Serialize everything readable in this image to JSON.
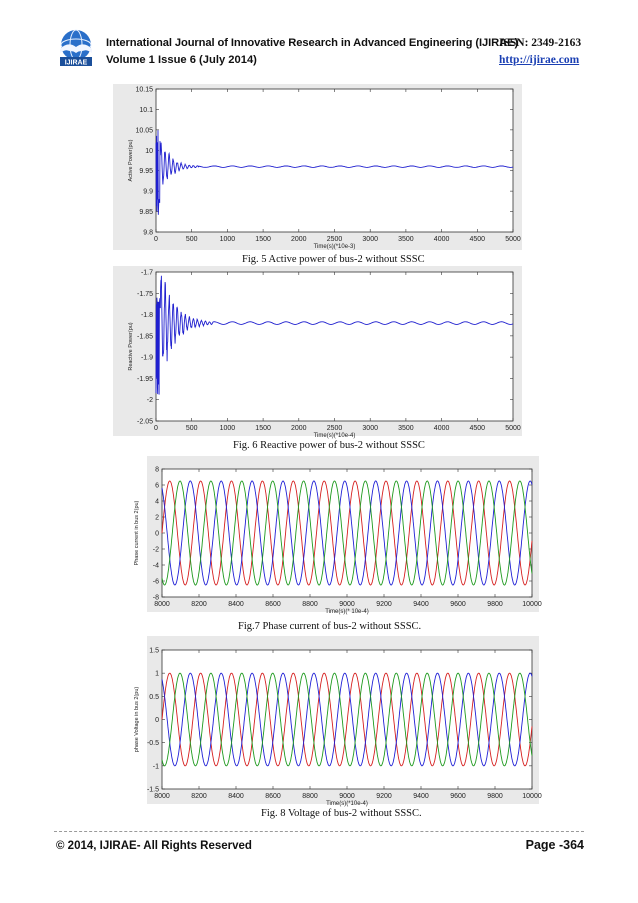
{
  "header": {
    "journal_line": "International Journal of Innovative Research in Advanced Engineering (IJIRAE)",
    "issn": "ISSN: 2349-2163",
    "volume_line": "Volume 1 Issue 6 (July 2014)",
    "url": "http://ijirae.com",
    "logo_text": "IJIRAE"
  },
  "figures": [
    {
      "caption": "Fig. 5 Active power of bus-2 without SSSC"
    },
    {
      "caption": "Fig. 6 Reactive power of bus-2 without SSSC"
    },
    {
      "caption": "Fig.7 Phase current of bus-2 without SSSC."
    },
    {
      "caption": "Fig. 8 Voltage of bus-2 without SSSC."
    }
  ],
  "footer": {
    "copyright": "© 2014, IJIRAE- All Rights Reserved",
    "page": "Page -364"
  },
  "chart_data": [
    {
      "type": "line",
      "xlabel": "Time(s)(*10e-3)",
      "ylabel": "Active Power(pu)",
      "xlim": [
        0,
        5000
      ],
      "ylim": [
        9.8,
        10.15
      ],
      "xticks": [
        0,
        500,
        1000,
        1500,
        2000,
        2500,
        3000,
        3500,
        4000,
        4500,
        5000
      ],
      "yticks": [
        9.8,
        9.85,
        9.9,
        9.95,
        10,
        10.05,
        10.1,
        10.15
      ],
      "ytick_labels": [
        "9.8",
        "9.85",
        "9.9",
        "9.95",
        "10",
        "10.05",
        "10.1",
        "10.15"
      ],
      "steady_value": 9.96,
      "initial_transient": {
        "min": 9.84,
        "max": 10.05,
        "settle_x": 600
      },
      "series_color": "#1f1fcf",
      "grid": false
    },
    {
      "type": "line",
      "xlabel": "Time(s)(*10e-4)",
      "ylabel": "Reactive Power(pu)",
      "xlim": [
        0,
        5000
      ],
      "ylim": [
        -2.05,
        -1.7
      ],
      "xticks": [
        0,
        500,
        1000,
        1500,
        2000,
        2500,
        3000,
        3500,
        4000,
        4500,
        5000
      ],
      "yticks": [
        -2.05,
        -2,
        -1.95,
        -1.9,
        -1.85,
        -1.8,
        -1.75,
        -1.7
      ],
      "ytick_labels": [
        "-2.05",
        "-2",
        "-1.95",
        "-1.9",
        "-1.85",
        "-1.8",
        "-1.75",
        "-1.7"
      ],
      "steady_value": -1.82,
      "initial_transient": {
        "min": -2.03,
        "max": -1.76,
        "settle_x": 800
      },
      "series_color": "#1f1fcf",
      "grid": false
    },
    {
      "type": "line",
      "xlabel": "Time(s)(* 10e-4)",
      "ylabel": "Phase current in bus 2(pu)",
      "xlim": [
        8000,
        10000
      ],
      "ylim": [
        -8,
        8
      ],
      "xticks": [
        8000,
        8200,
        8400,
        8600,
        8800,
        9000,
        9200,
        9400,
        9600,
        9800,
        10000
      ],
      "yticks": [
        -8,
        -6,
        -4,
        -2,
        0,
        2,
        4,
        6,
        8
      ],
      "ytick_labels": [
        "-8",
        "-6",
        "-4",
        "-2",
        "0",
        "2",
        "4",
        "6",
        "8"
      ],
      "amplitude": 6.5,
      "period": 167,
      "phase_offsets_deg": [
        0,
        120,
        240
      ],
      "series_colors": [
        "#d62020",
        "#2020d6",
        "#1e9a1e"
      ],
      "grid": false
    },
    {
      "type": "line",
      "xlabel": "Time(s)(*10e-4)",
      "ylabel": "phase Voltage in bus 2(pu)",
      "xlim": [
        8000,
        10000
      ],
      "ylim": [
        -1.5,
        1.5
      ],
      "xticks": [
        8000,
        8200,
        8400,
        8600,
        8800,
        9000,
        9200,
        9400,
        9600,
        9800,
        10000
      ],
      "yticks": [
        -1.5,
        -1,
        -0.5,
        0,
        0.5,
        1,
        1.5
      ],
      "ytick_labels": [
        "-1.5",
        "-1",
        "-0.5",
        "0",
        "0.5",
        "1",
        "1.5"
      ],
      "amplitude": 1.0,
      "period": 167,
      "phase_offsets_deg": [
        0,
        120,
        240
      ],
      "series_colors": [
        "#d62020",
        "#2020d6",
        "#1e9a1e"
      ],
      "grid": false
    }
  ]
}
